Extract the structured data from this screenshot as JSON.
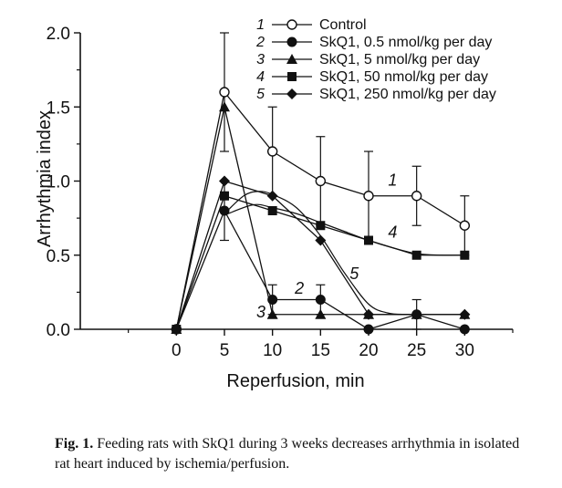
{
  "chart_data": {
    "type": "line",
    "xlabel": "Reperfusion, min",
    "ylabel": "Arrhythmia index",
    "x": [
      0,
      5,
      10,
      15,
      20,
      25,
      30
    ],
    "xlim": [
      -10,
      35
    ],
    "ylim": [
      0,
      2.0
    ],
    "x_ticks": [
      "0",
      "5",
      "10",
      "15",
      "20",
      "25",
      "30"
    ],
    "y_ticks": [
      "0.0",
      "0.5",
      "1.0",
      "1.5",
      "2.0"
    ],
    "legend_placement": "top-right",
    "grid": false,
    "series": [
      {
        "id": "1",
        "name": "Control",
        "marker": "open-circle",
        "values": [
          0,
          1.6,
          1.2,
          1.0,
          0.9,
          0.9,
          0.7
        ],
        "error_bars": [
          null,
          0.4,
          0.3,
          0.3,
          0.3,
          0.2,
          0.2
        ],
        "curve_label": "1",
        "curve_label_at": [
          22.5,
          0.97
        ]
      },
      {
        "id": "2",
        "name": "SkQ1, 0.5 nmol/kg per day",
        "marker": "filled-circle",
        "values": [
          0,
          0.8,
          0.2,
          0.2,
          0.0,
          0.1,
          0.0
        ],
        "error_bars": [
          null,
          0.2,
          0.1,
          0.1,
          null,
          0.1,
          null
        ],
        "curve_label": "2",
        "curve_label_at": [
          12.8,
          0.24
        ]
      },
      {
        "id": "3",
        "name": "SkQ1, 5 nmol/kg per day",
        "marker": "filled-triangle",
        "values": [
          0,
          1.5,
          0.1,
          0.1,
          0.1,
          0.1,
          0.1
        ],
        "error_bars": [
          null,
          null,
          null,
          null,
          null,
          null,
          null
        ],
        "curve_label": "3",
        "curve_label_at": [
          8.8,
          0.08
        ]
      },
      {
        "id": "4",
        "name": "SkQ1, 50 nmol/kg per day",
        "marker": "filled-square",
        "values": [
          0,
          0.9,
          0.8,
          0.7,
          0.6,
          0.5,
          0.5
        ],
        "error_bars": [
          null,
          null,
          null,
          null,
          null,
          null,
          null
        ],
        "curve_label": "4",
        "curve_label_at": [
          22.5,
          0.62
        ]
      },
      {
        "id": "5",
        "name": "SkQ1, 250 nmol/kg per day",
        "marker": "filled-diamond",
        "values": [
          0,
          1.0,
          0.9,
          0.6,
          0.1,
          0.1,
          0.1
        ],
        "error_bars": [
          null,
          null,
          null,
          null,
          null,
          null,
          null
        ],
        "curve_label": "5",
        "curve_label_at": [
          18.5,
          0.34
        ]
      }
    ],
    "fitted_curves": [
      {
        "series": "4",
        "x": [
          5,
          8,
          10,
          12.5,
          15,
          17.5,
          20,
          22.5,
          25,
          27.5,
          30
        ],
        "y": [
          0.77,
          0.84,
          0.82,
          0.78,
          0.72,
          0.66,
          0.6,
          0.55,
          0.51,
          0.5,
          0.5
        ]
      },
      {
        "series": "5",
        "x": [
          5,
          7,
          8.5,
          10,
          12.5,
          15,
          17.5,
          20,
          22,
          24,
          26
        ],
        "y": [
          0.78,
          0.9,
          0.93,
          0.91,
          0.82,
          0.63,
          0.38,
          0.17,
          0.11,
          0.1,
          0.1
        ]
      }
    ]
  },
  "caption": {
    "label": "Fig. 1.",
    "text": " Feeding rats with SkQ1 during 3 weeks decreases arrhythmia in isolated rat heart induced by ischemia/perfusion."
  }
}
